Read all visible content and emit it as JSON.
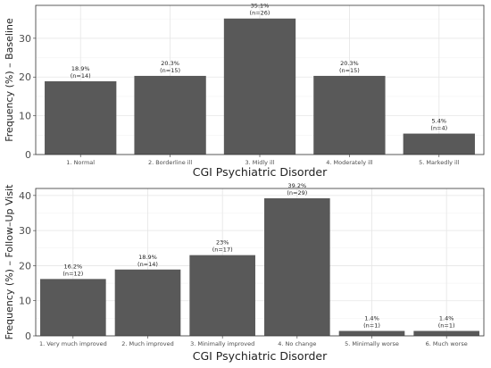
{
  "chart_data": [
    {
      "type": "bar",
      "xlabel": "CGI Psychiatric Disorder",
      "ylabel": "Frequency (%) – Baseline",
      "ylim": [
        0,
        38.5
      ],
      "yticks": [
        0,
        10,
        20,
        30
      ],
      "grid": true,
      "bar_color": "#595959",
      "categories": [
        "1. Normal",
        "2. Borderline ill",
        "3. Midly ill",
        "4. Moderately ill",
        "5. Markedly ill"
      ],
      "values": [
        18.9,
        20.3,
        35.1,
        20.3,
        5.4
      ],
      "value_labels": [
        "18.9%",
        "20.3%",
        "35.1%",
        "20.3%",
        "5.4%"
      ],
      "n_labels": [
        "(n=14)",
        "(n=15)",
        "(n=26)",
        "(n=15)",
        "(n=4)"
      ]
    },
    {
      "type": "bar",
      "xlabel": "CGI Psychiatric Disorder",
      "ylabel": "Frequency (%) – Follow–Up Visit",
      "ylim": [
        0,
        42
      ],
      "yticks": [
        0,
        10,
        20,
        30,
        40
      ],
      "grid": true,
      "bar_color": "#595959",
      "categories": [
        "1. Very much improved",
        "2. Much improved",
        "3. Minimally improved",
        "4. No change",
        "5. Minimally worse",
        "6. Much worse"
      ],
      "values": [
        16.2,
        18.9,
        23,
        39.2,
        1.4,
        1.4
      ],
      "value_labels": [
        "16.2%",
        "18.9%",
        "23%",
        "39.2%",
        "1.4%",
        "1.4%"
      ],
      "n_labels": [
        "(n=12)",
        "(n=14)",
        "(n=17)",
        "(n=29)",
        "(n=1)",
        "(n=1)"
      ]
    }
  ]
}
